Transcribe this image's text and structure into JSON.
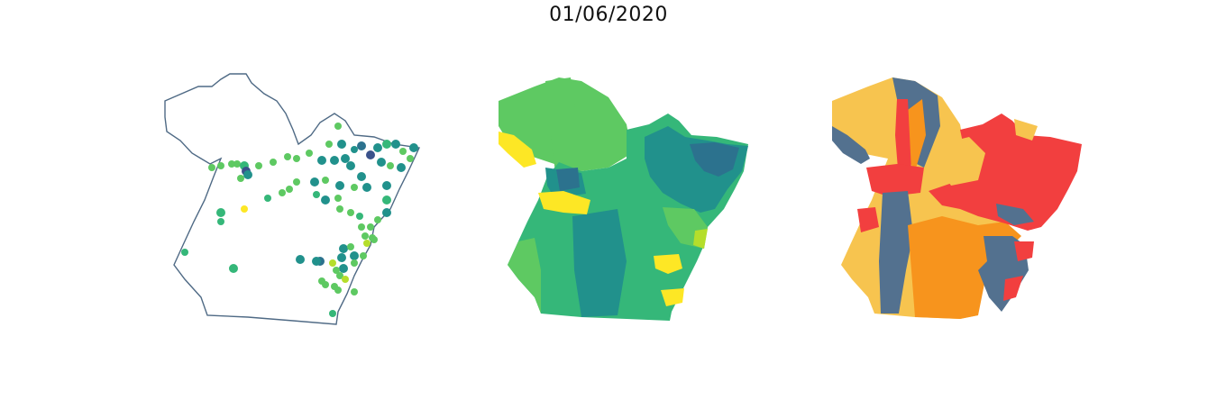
{
  "title": "01/06/2020",
  "colors": {
    "outline": "#4f6a85",
    "viridis_dark": "#3b528b",
    "viridis_teal": "#21918c",
    "viridis_teal_dark": "#2c728e",
    "viridis_green": "#5ec962",
    "viridis_green_mid": "#35b779",
    "viridis_yellow": "#fde725",
    "viridis_lime": "#b5de2b",
    "cat_yellow": "#f7c44f",
    "cat_orange": "#f7941d",
    "cat_red": "#f23f3f",
    "cat_slate": "#53718f"
  },
  "panels": [
    {
      "name": "points-map",
      "style": "outline-with-points"
    },
    {
      "name": "viridis-choropleth",
      "style": "choropleth"
    },
    {
      "name": "category-choropleth",
      "style": "choropleth"
    }
  ]
}
